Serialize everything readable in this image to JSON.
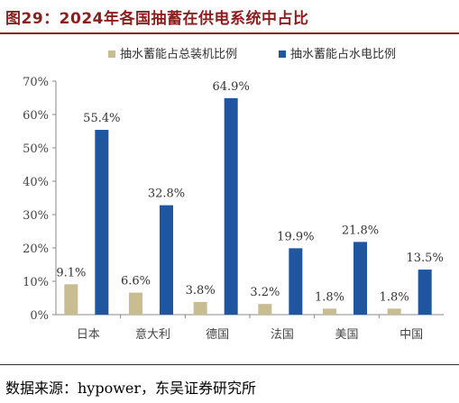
{
  "header": {
    "title": "图29：2024年各国抽蓄在供电系统中占比"
  },
  "footer": {
    "source": "数据来源：hypower，东吴证券研究所"
  },
  "colors": {
    "title": "#8B1E1E",
    "series1": "#C8BC92",
    "series2": "#2055A0"
  },
  "chart_data": {
    "type": "bar",
    "categories": [
      "日本",
      "意大利",
      "德国",
      "法国",
      "美国",
      "中国"
    ],
    "series": [
      {
        "name": "抽水蓄能占总装机比例",
        "values": [
          9.1,
          6.6,
          3.8,
          3.2,
          1.8,
          1.8
        ],
        "labels": [
          "9.1%",
          "6.6%",
          "3.8%",
          "3.2%",
          "1.8%",
          "1.8%"
        ]
      },
      {
        "name": "抽水蓄能占水电比例",
        "values": [
          55.4,
          32.8,
          64.9,
          19.9,
          21.8,
          13.5
        ],
        "labels": [
          "55.4%",
          "32.8%",
          "64.9%",
          "19.9%",
          "21.8%",
          "13.5%"
        ]
      }
    ],
    "yticks": [
      "0%",
      "10%",
      "20%",
      "30%",
      "40%",
      "50%",
      "60%",
      "70%"
    ],
    "ylim": [
      0,
      70
    ],
    "grid": false,
    "legend_position": "top"
  }
}
